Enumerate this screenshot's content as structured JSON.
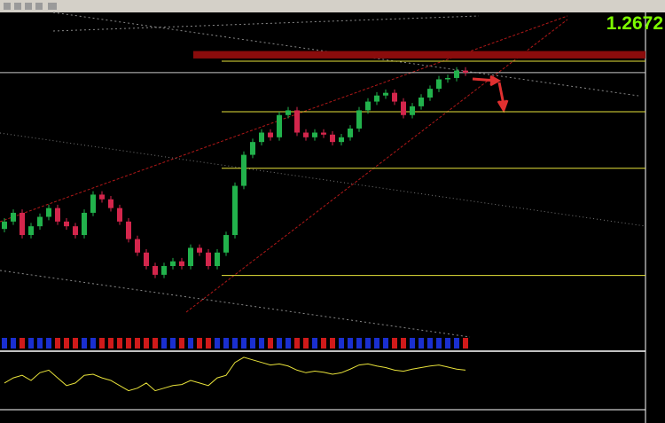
{
  "chart_data": {
    "type": "candlestick",
    "current_price": 1.2672,
    "ylim": [
      1.226,
      1.276
    ],
    "up_color": "#22b24c",
    "down_color": "#d4264c",
    "levels": [
      1.2689,
      1.2614,
      1.253,
      1.2371
    ],
    "resistance_zone": [
      1.2693,
      1.2704
    ],
    "open": [
      1.244,
      1.2451,
      1.2464,
      1.2431,
      1.2444,
      1.2458,
      1.2471,
      1.2451,
      1.2444,
      1.2431,
      1.2464,
      1.2491,
      1.2484,
      1.2471,
      1.2451,
      1.2425,
      1.2405,
      1.2385,
      1.2372,
      1.2385,
      1.2392,
      1.2385,
      1.2412,
      1.2405,
      1.2385,
      1.2405,
      1.2431,
      1.2504,
      1.255,
      1.2569,
      1.2583,
      1.2576,
      1.2609,
      1.2616,
      1.2583,
      1.2576,
      1.2583,
      1.258,
      1.2569,
      1.2576,
      1.2589,
      1.2616,
      1.2629,
      1.2638,
      1.2642,
      1.2629,
      1.2609,
      1.2622,
      1.2635,
      1.2648,
      1.2662,
      1.2664,
      1.2675
    ],
    "high": [
      1.2456,
      1.2469,
      1.2469,
      1.2449,
      1.2463,
      1.2476,
      1.2476,
      1.2456,
      1.2449,
      1.2469,
      1.2496,
      1.2496,
      1.2489,
      1.2476,
      1.2456,
      1.243,
      1.241,
      1.239,
      1.239,
      1.2397,
      1.2397,
      1.2417,
      1.2417,
      1.241,
      1.241,
      1.2436,
      1.2509,
      1.2555,
      1.2574,
      1.2588,
      1.2588,
      1.2614,
      1.2621,
      1.2621,
      1.2588,
      1.2588,
      1.2588,
      1.2585,
      1.2581,
      1.2594,
      1.2621,
      1.2634,
      1.2643,
      1.2647,
      1.2647,
      1.2634,
      1.2627,
      1.264,
      1.2653,
      1.2667,
      1.2669,
      1.268,
      1.268
    ],
    "low": [
      1.2435,
      1.2446,
      1.2426,
      1.2426,
      1.2439,
      1.2453,
      1.2446,
      1.2439,
      1.2426,
      1.2426,
      1.2459,
      1.2479,
      1.2466,
      1.2446,
      1.242,
      1.24,
      1.238,
      1.2367,
      1.2367,
      1.238,
      1.238,
      1.238,
      1.24,
      1.238,
      1.238,
      1.24,
      1.2426,
      1.2499,
      1.2545,
      1.2564,
      1.2571,
      1.2571,
      1.2604,
      1.2578,
      1.2571,
      1.2571,
      1.2575,
      1.2564,
      1.2564,
      1.2571,
      1.2584,
      1.2611,
      1.2624,
      1.2633,
      1.2624,
      1.2604,
      1.2604,
      1.2617,
      1.263,
      1.2643,
      1.2657,
      1.2659,
      1.2667
    ],
    "close": [
      1.2451,
      1.2464,
      1.2431,
      1.2444,
      1.2458,
      1.2471,
      1.2451,
      1.2444,
      1.2431,
      1.2464,
      1.2491,
      1.2484,
      1.2471,
      1.2451,
      1.2425,
      1.2405,
      1.2385,
      1.2372,
      1.2385,
      1.2392,
      1.2385,
      1.2412,
      1.2405,
      1.2385,
      1.2405,
      1.2431,
      1.2504,
      1.255,
      1.2569,
      1.2583,
      1.2576,
      1.2609,
      1.2616,
      1.2583,
      1.2576,
      1.2583,
      1.258,
      1.2569,
      1.2576,
      1.2589,
      1.2616,
      1.2629,
      1.2638,
      1.2642,
      1.2629,
      1.2609,
      1.2622,
      1.2635,
      1.2648,
      1.2662,
      1.2664,
      1.2675,
      1.2672
    ],
    "oscillator": {
      "color": "#e8e23a",
      "ylim": [
        0,
        100
      ],
      "values": [
        45,
        55,
        60,
        50,
        65,
        70,
        55,
        40,
        45,
        60,
        62,
        55,
        50,
        40,
        30,
        35,
        45,
        30,
        35,
        40,
        42,
        50,
        45,
        40,
        55,
        60,
        85,
        95,
        90,
        85,
        80,
        82,
        78,
        70,
        65,
        68,
        66,
        62,
        65,
        72,
        80,
        82,
        78,
        75,
        70,
        68,
        72,
        75,
        78,
        80,
        76,
        72,
        70
      ]
    }
  }
}
